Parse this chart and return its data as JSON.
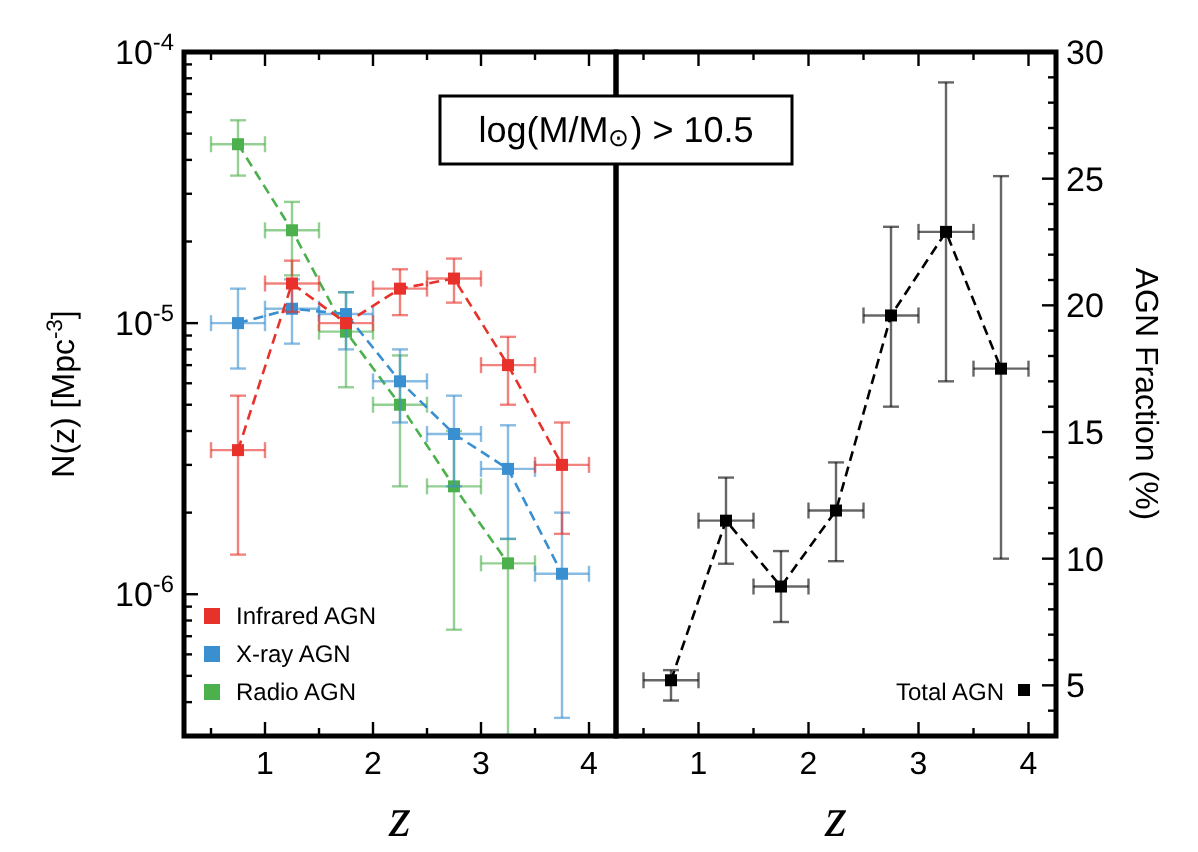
{
  "chart_data": [
    {
      "type": "line",
      "xlabel": "z",
      "ylabel": "N(z) [Mpc$^{-3}$]",
      "log": "y",
      "xlim": [
        0.25,
        4.25
      ],
      "ylim": [
        3e-07,
        0.0001
      ],
      "xticks": [
        {
          "value": 0.5,
          "label": null
        },
        1,
        {
          "value": 1.5,
          "label": null
        },
        2,
        {
          "value": 2.5,
          "label": null
        },
        3,
        {
          "value": 3.5,
          "label": null
        },
        4
      ],
      "yticks": [
        {
          "value": 3e-07,
          "label": null
        },
        {
          "value": 4e-07,
          "label": null
        },
        {
          "value": 5e-07,
          "label": null
        },
        {
          "value": 6e-07,
          "label": null
        },
        {
          "value": 7e-07,
          "label": null
        },
        {
          "value": 8e-07,
          "label": null
        },
        {
          "value": 9e-07,
          "label": null
        },
        {
          "value": 1e-06,
          "label": "10$^{-6}$"
        },
        {
          "value": 2e-06,
          "label": null
        },
        {
          "value": 3e-06,
          "label": null
        },
        {
          "value": 4e-06,
          "label": null
        },
        {
          "value": 5e-06,
          "label": null
        },
        {
          "value": 6e-06,
          "label": null
        },
        {
          "value": 7e-06,
          "label": null
        },
        {
          "value": 8e-06,
          "label": null
        },
        {
          "value": 9e-06,
          "label": null
        },
        {
          "value": 1e-05,
          "label": "10$^{-5}$"
        },
        {
          "value": 2e-05,
          "label": null
        },
        {
          "value": 3e-05,
          "label": null
        },
        {
          "value": 4e-05,
          "label": null
        },
        {
          "value": 5e-05,
          "label": null
        },
        {
          "value": 6e-05,
          "label": null
        },
        {
          "value": 7e-05,
          "label": null
        },
        {
          "value": 8e-05,
          "label": null
        },
        {
          "value": 9e-05,
          "label": null
        },
        {
          "value": 0.0001,
          "label": "10$^{-4}$"
        }
      ],
      "x": [
        0.75,
        1.25,
        1.75,
        2.25,
        2.75,
        3.25,
        3.75
      ],
      "marker": "square",
      "line_style": "dashed",
      "grid": false,
      "legend": "bottom left",
      "annotations": [
        "log(M/M$_{⊙}$) > 10.5"
      ],
      "series": [
        {
          "name": "Infrared AGN",
          "color": "#e8312a",
          "values": [
            3.4e-06,
            1.4e-05,
            1e-05,
            1.34e-05,
            1.46e-05,
            7e-06,
            3e-06
          ],
          "errors": [
            [
              1.4e-06,
              5.4e-06
            ],
            [
              1.1e-05,
              1.7e-05
            ],
            null,
            [
              1.07e-05,
              1.58e-05
            ],
            [
              1.19e-05,
              1.73e-05
            ],
            [
              5e-06,
              8.9e-06
            ],
            [
              1.67e-06,
              4.3e-06
            ]
          ],
          "xerrors": [
            0.25,
            0.25,
            0.25,
            0.25,
            0.25,
            0.25,
            0.25
          ]
        },
        {
          "name": "X-ray AGN",
          "color": "#3a8fd0",
          "values": [
            1e-05,
            1.13e-05,
            1.08e-05,
            6.1e-06,
            3.9e-06,
            2.9e-06,
            1.19e-06
          ],
          "errors": [
            [
              6.8e-06,
              1.34e-05
            ],
            [
              8.4e-06,
              1.45e-05
            ],
            [
              8e-06,
              1.3e-05
            ],
            [
              4.3e-06,
              8e-06
            ],
            [
              2.5e-06,
              5.4e-06
            ],
            [
              1.6e-06,
              4.2e-06
            ],
            [
              3.5e-07,
              2e-06
            ]
          ],
          "xerrors": [
            0.25,
            0.25,
            0.25,
            0.25,
            0.25,
            0.25,
            0.25
          ]
        },
        {
          "name": "Radio AGN",
          "color": "#4cb14c",
          "values": [
            4.57e-05,
            2.2e-05,
            9.3e-06,
            5e-06,
            2.5e-06,
            1.3e-06,
            null
          ],
          "errors": [
            [
              3.5e-05,
              5.6e-05
            ],
            [
              1.5e-05,
              2.8e-05
            ],
            [
              5.8e-06,
              1.3e-05
            ],
            [
              2.5e-06,
              7.6e-06
            ],
            [
              7.4e-07,
              4e-06
            ],
            [
              3e-07,
              1.6e-06
            ],
            null
          ],
          "xerrors": [
            0.25,
            0.25,
            0.25,
            0.25,
            0.25,
            0.25,
            null
          ]
        }
      ]
    },
    {
      "type": "line",
      "xlabel": "z",
      "ylabel": "AGN Fraction (%)",
      "xlim": [
        0.25,
        4.25
      ],
      "ylim": [
        3,
        30
      ],
      "xticks": [
        {
          "value": 0.5,
          "label": null
        },
        1,
        {
          "value": 1.5,
          "label": null
        },
        2,
        {
          "value": 2.5,
          "label": null
        },
        3,
        {
          "value": 3.5,
          "label": null
        },
        4
      ],
      "yticks": [
        {
          "value": 4,
          "label": null
        },
        5,
        {
          "value": 6,
          "label": null
        },
        {
          "value": 7,
          "label": null
        },
        {
          "value": 8,
          "label": null
        },
        {
          "value": 9,
          "label": null
        },
        10,
        {
          "value": 11,
          "label": null
        },
        {
          "value": 12,
          "label": null
        },
        {
          "value": 13,
          "label": null
        },
        {
          "value": 14,
          "label": null
        },
        15,
        {
          "value": 16,
          "label": null
        },
        {
          "value": 17,
          "label": null
        },
        {
          "value": 18,
          "label": null
        },
        {
          "value": 19,
          "label": null
        },
        20,
        {
          "value": 21,
          "label": null
        },
        {
          "value": 22,
          "label": null
        },
        {
          "value": 23,
          "label": null
        },
        {
          "value": 24,
          "label": null
        },
        25,
        {
          "value": 26,
          "label": null
        },
        {
          "value": 27,
          "label": null
        },
        {
          "value": 28,
          "label": null
        },
        {
          "value": 29,
          "label": null
        },
        30
      ],
      "x": [
        0.75,
        1.25,
        1.75,
        2.25,
        2.75,
        3.25,
        3.75
      ],
      "marker": "square",
      "line_style": "dashed",
      "grid": false,
      "legend": "bottom right",
      "series": [
        {
          "name": "Total AGN",
          "color": "#000000",
          "values": [
            5.2,
            11.5,
            8.9,
            11.9,
            19.6,
            22.9,
            17.5
          ],
          "errors": [
            [
              4.4,
              5.6
            ],
            [
              9.8,
              13.2
            ],
            [
              7.5,
              10.3
            ],
            [
              9.9,
              13.8
            ],
            [
              16.0,
              23.1
            ],
            [
              17.0,
              28.8
            ],
            [
              10.0,
              25.1
            ]
          ],
          "xerrors": [
            0.25,
            0.25,
            0.25,
            0.25,
            0.25,
            0.25,
            0.25
          ]
        }
      ]
    }
  ]
}
